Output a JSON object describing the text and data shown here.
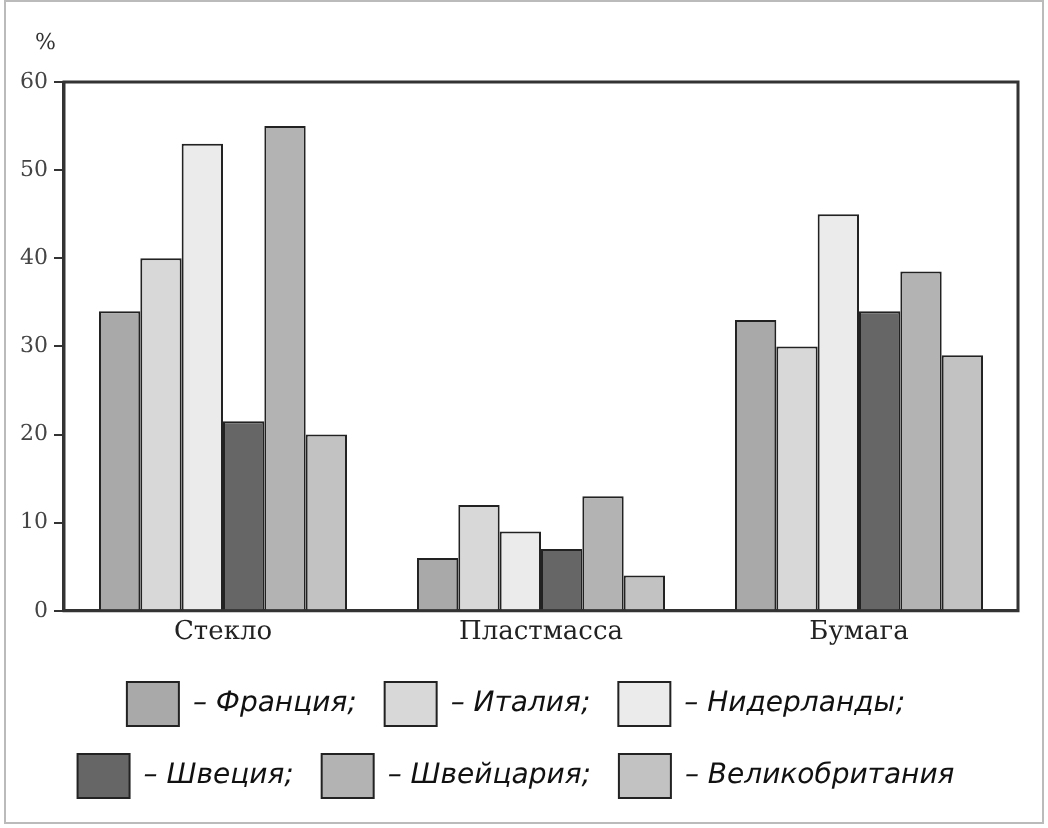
{
  "chart_data": {
    "type": "bar",
    "ylabel": "%",
    "categories": [
      "Стекло",
      "Пластмасса",
      "Бумага"
    ],
    "series": [
      {
        "name": "– Франция;",
        "color": "#a9a9a9",
        "values": [
          34,
          6,
          33
        ]
      },
      {
        "name": "– Италия;",
        "color": "#d8d8d8",
        "values": [
          40,
          12,
          30
        ]
      },
      {
        "name": "– Нидерланды;",
        "color": "#ebebeb",
        "values": [
          53,
          9,
          45
        ]
      },
      {
        "name": "– Швеция;",
        "color": "#666666",
        "values": [
          21.5,
          7,
          34
        ]
      },
      {
        "name": "– Швейцария;",
        "color": "#b3b3b3",
        "values": [
          55,
          13,
          38.5
        ]
      },
      {
        "name": "– Великобритания",
        "color": "#c2c2c2",
        "values": [
          20,
          4,
          29
        ]
      }
    ],
    "ylim": [
      0,
      60
    ],
    "yticks": [
      0,
      10,
      20,
      30,
      40,
      50,
      60
    ],
    "grid": false,
    "legend": "bottom"
  }
}
